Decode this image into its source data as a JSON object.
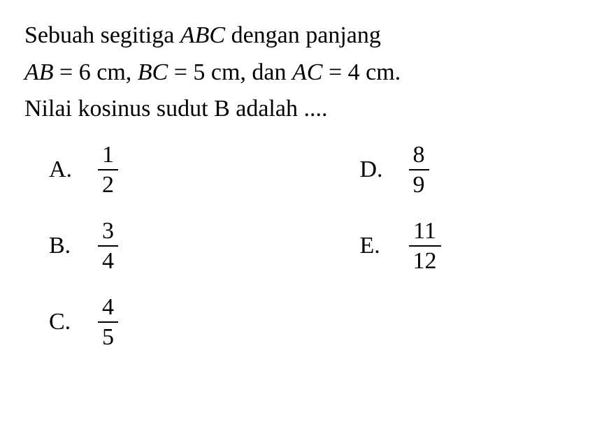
{
  "question": {
    "line1_part1": "Sebuah segitiga ",
    "line1_italic": "ABC",
    "line1_part2": " dengan panjang",
    "line2_ab_italic": "AB",
    "line2_ab_val": " = 6 cm, ",
    "line2_bc_italic": "BC",
    "line2_bc_val": " = 5 cm, dan ",
    "line2_ac_italic": "AC",
    "line2_ac_val": " = 4 cm.",
    "line3": "Nilai kosinus sudut B adalah ...."
  },
  "options": {
    "a": {
      "label": "A.",
      "num": "1",
      "den": "2"
    },
    "b": {
      "label": "B.",
      "num": "3",
      "den": "4"
    },
    "c": {
      "label": "C.",
      "num": "4",
      "den": "5"
    },
    "d": {
      "label": "D.",
      "num": "8",
      "den": "9"
    },
    "e": {
      "label": "E.",
      "num": "11",
      "den": "12"
    }
  },
  "style": {
    "background_color": "#ffffff",
    "text_color": "#000000",
    "font_family": "Times New Roman, serif",
    "question_fontsize": 34,
    "option_fontsize": 34,
    "fraction_bar_width": 2.5
  }
}
